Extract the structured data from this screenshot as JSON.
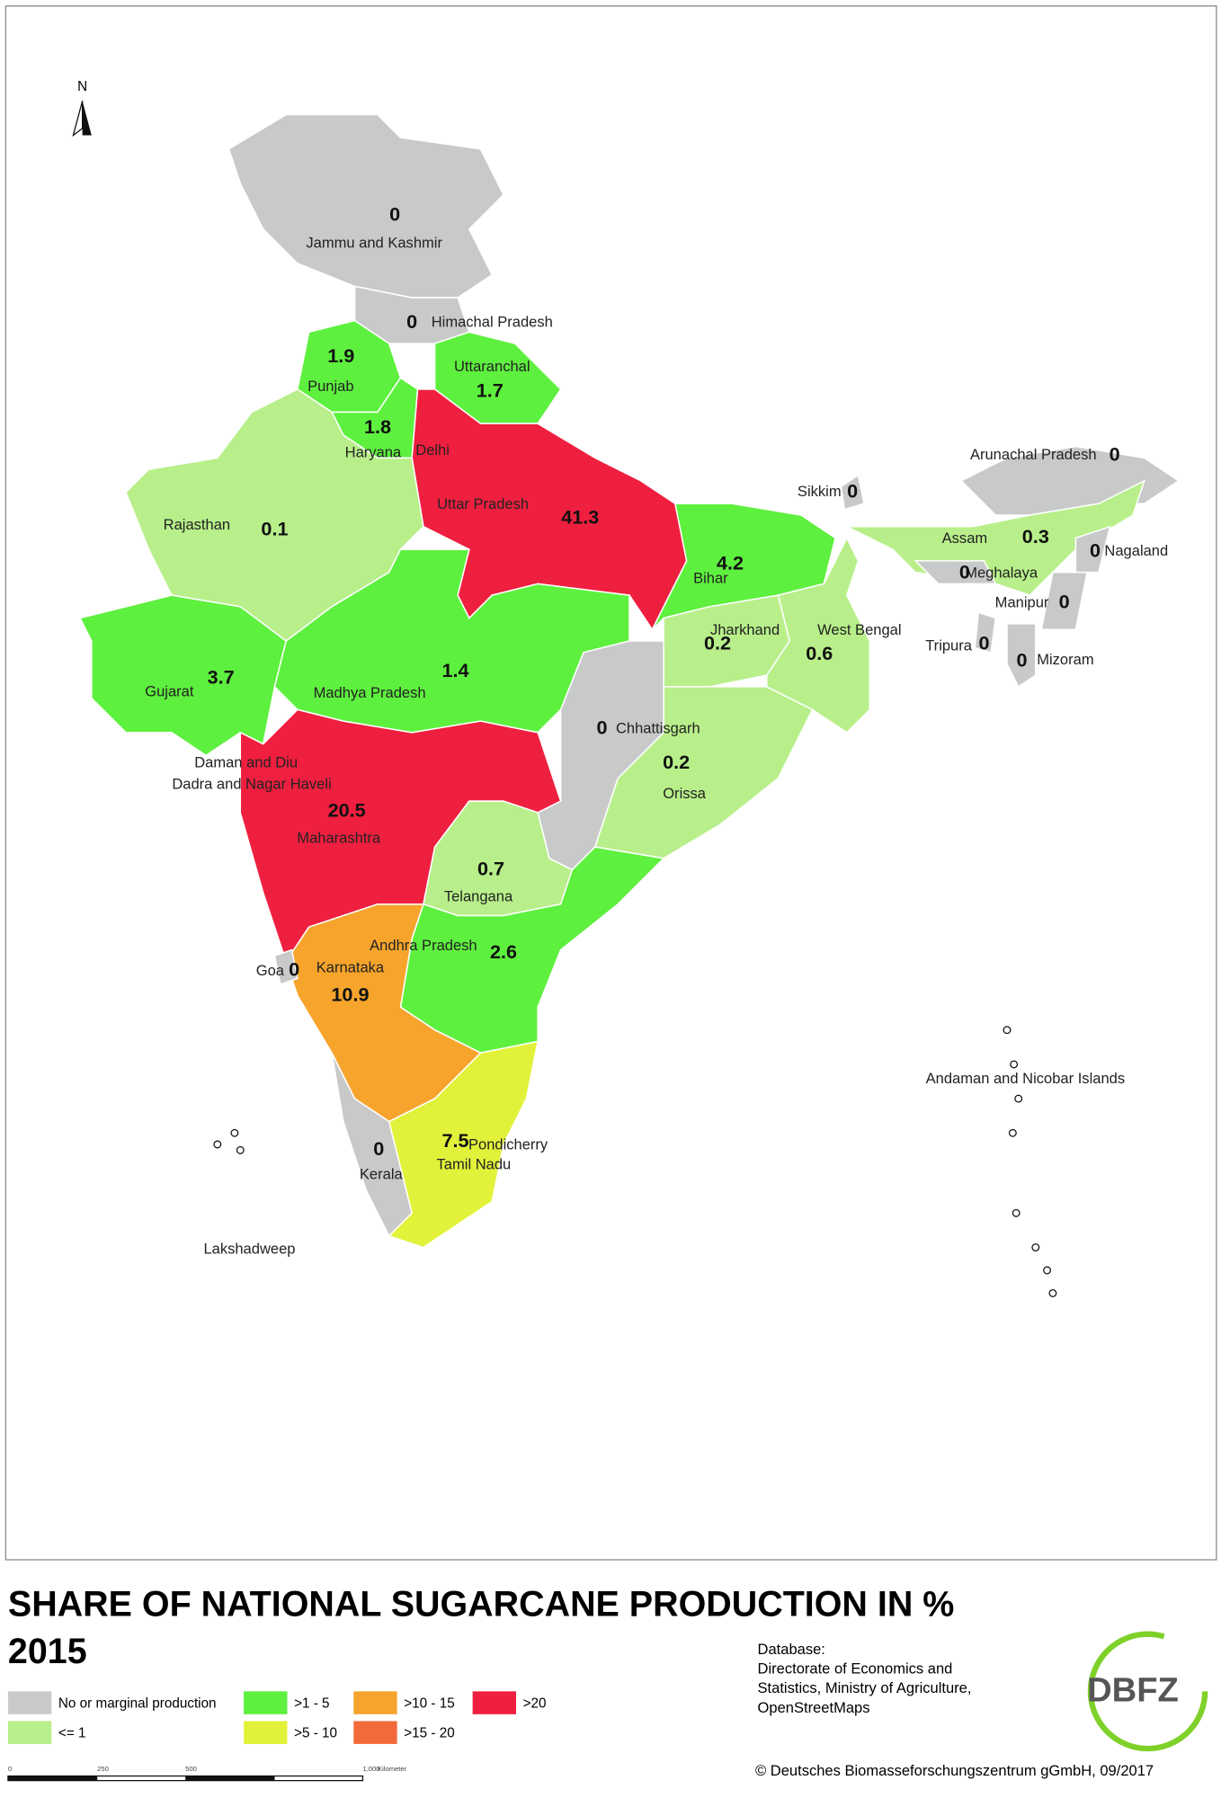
{
  "map": {
    "north": "N",
    "regions": [
      {
        "name": "Jammu and Kashmir",
        "value": 0,
        "color": "#c8c9c9"
      },
      {
        "name": "Himachal Pradesh",
        "value": 0,
        "color": "#c8c9c9"
      },
      {
        "name": "Punjab",
        "value": 1.9,
        "color": "#5ef03e"
      },
      {
        "name": "Uttaranchal",
        "value": 1.7,
        "color": "#5ef03e"
      },
      {
        "name": "Haryana",
        "value": 1.8,
        "color": "#5ef03e"
      },
      {
        "name": "Uttar Pradesh",
        "value": 41.3,
        "color": "#ef1f3f"
      },
      {
        "name": "Rajasthan",
        "value": 0.1,
        "color": "#b8ef8a"
      },
      {
        "name": "Gujarat",
        "value": 3.7,
        "color": "#5ef03e"
      },
      {
        "name": "Madhya Pradesh",
        "value": 1.4,
        "color": "#5ef03e"
      },
      {
        "name": "Maharashtra",
        "value": 20.5,
        "color": "#ef1f3f"
      },
      {
        "name": "Chhattisgarh",
        "value": 0,
        "color": "#c8c9c9"
      },
      {
        "name": "Bihar",
        "value": 4.2,
        "color": "#5ef03e"
      },
      {
        "name": "Jharkhand",
        "value": 0.2,
        "color": "#b8ef8a"
      },
      {
        "name": "West Bengal",
        "value": 0.6,
        "color": "#b8ef8a"
      },
      {
        "name": "Orissa",
        "value": 0.2,
        "color": "#b8ef8a"
      },
      {
        "name": "Telangana",
        "value": 0.7,
        "color": "#b8ef8a"
      },
      {
        "name": "Andhra Pradesh",
        "value": 2.6,
        "color": "#5ef03e"
      },
      {
        "name": "Karnataka",
        "value": 10.9,
        "color": "#f6a42c"
      },
      {
        "name": "Goa",
        "value": 0,
        "color": "#c8c9c9"
      },
      {
        "name": "Kerala",
        "value": 0,
        "color": "#c8c9c9"
      },
      {
        "name": "Tamil Nadu",
        "value": 7.5,
        "color": "#e2f23a"
      },
      {
        "name": "Sikkim",
        "value": 0,
        "color": "#c8c9c9"
      },
      {
        "name": "Arunachal Pradesh",
        "value": 0,
        "color": "#c8c9c9"
      },
      {
        "name": "Assam",
        "value": 0.3,
        "color": "#b8ef8a"
      },
      {
        "name": "Meghalaya",
        "value": 0,
        "color": "#c8c9c9"
      },
      {
        "name": "Nagaland",
        "value": 0,
        "color": "#c8c9c9"
      },
      {
        "name": "Manipur",
        "value": 0,
        "color": "#c8c9c9"
      },
      {
        "name": "Mizoram",
        "value": 0,
        "color": "#c8c9c9"
      },
      {
        "name": "Tripura",
        "value": 0,
        "color": "#c8c9c9"
      }
    ],
    "place_names": [
      "Delhi",
      "Daman and Diu",
      "Dadra and Nagar Haveli",
      "Pondicherry",
      "Andaman and Nicobar Islands",
      "Lakshadweep"
    ],
    "scale_labels": [
      "0",
      "250",
      "500",
      "1,000",
      "Kilometer"
    ]
  },
  "title": "SHARE OF NATIONAL SUGARCANE PRODUCTION IN %",
  "subtitle": "2015",
  "legend": [
    {
      "label": "No or marginal production",
      "color": "#c8c9c9"
    },
    {
      "label": "<= 1",
      "color": "#b8ef8a"
    },
    {
      "label": ">1 - 5",
      "color": "#5ef03e"
    },
    {
      "label": ">5 - 10",
      "color": "#e2f23a"
    },
    {
      "label": ">10 - 15",
      "color": "#f6a42c"
    },
    {
      "label": ">15 - 20",
      "color": "#f26a3a"
    },
    {
      "label": ">20",
      "color": "#ef1f3f"
    }
  ],
  "source": [
    "Database:",
    "Directorate of Economics and",
    "Statistics, Ministry of Agriculture,",
    "OpenStreetMaps"
  ],
  "logo": "DBFZ",
  "copyright": "© Deutsches Biomasseforschungszentrum gGmbH, 09/2017"
}
